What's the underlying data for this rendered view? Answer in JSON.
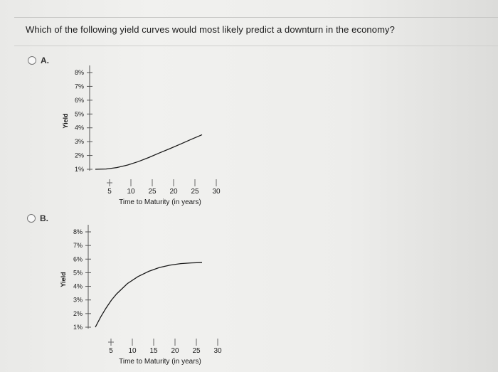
{
  "question": "Which of the following yield curves would most likely predict a downturn in the economy?",
  "options": [
    {
      "label": "A.",
      "chart_data": {
        "type": "line",
        "ylabel": "Yield",
        "xlabel": "Time to Maturity (in years)",
        "y_ticks": [
          "8%",
          "7%",
          "6%",
          "5%",
          "4%",
          "3%",
          "2%",
          "1%"
        ],
        "x_ticks": [
          "5",
          "10",
          "25",
          "20",
          "25",
          "30"
        ],
        "ylim": [
          1,
          8
        ],
        "series": [
          {
            "x": [
              0,
              0.5,
              1,
              1.5,
              2,
              2.5,
              3,
              3.5,
              4,
              4.5,
              5
            ],
            "y": [
              1.0,
              1.02,
              1.12,
              1.3,
              1.55,
              1.85,
              2.18,
              2.5,
              2.83,
              3.17,
              3.5
            ]
          }
        ]
      }
    },
    {
      "label": "B.",
      "chart_data": {
        "type": "line",
        "ylabel": "Yield",
        "xlabel": "Time to Maturity (in years)",
        "y_ticks": [
          "8%",
          "7%",
          "6%",
          "5%",
          "4%",
          "3%",
          "2%",
          "1%"
        ],
        "x_ticks": [
          "5",
          "10",
          "15",
          "20",
          "25",
          "30"
        ],
        "ylim": [
          1,
          8
        ],
        "series": [
          {
            "x": [
              0,
              0.25,
              0.5,
              0.75,
              1,
              1.5,
              2,
              2.5,
              3,
              3.5,
              4,
              4.5,
              5
            ],
            "y": [
              1.0,
              1.75,
              2.4,
              2.98,
              3.45,
              4.2,
              4.72,
              5.1,
              5.38,
              5.56,
              5.67,
              5.72,
              5.75
            ]
          }
        ]
      }
    }
  ]
}
